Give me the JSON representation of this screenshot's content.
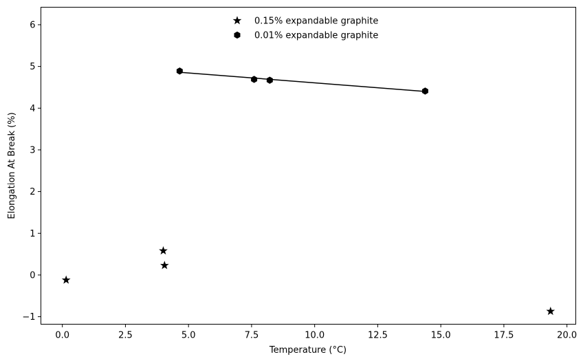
{
  "chart_data": {
    "type": "scatter",
    "xlabel": "Temperature (°C)",
    "ylabel": "Elongation At Break (%)",
    "xlim": [
      -0.85,
      20.35
    ],
    "ylim": [
      -1.18,
      6.42
    ],
    "xticks": [
      0.0,
      2.5,
      5.0,
      7.5,
      10.0,
      12.5,
      15.0,
      17.5,
      20.0
    ],
    "xtick_labels": [
      "0.0",
      "2.5",
      "5.0",
      "7.5",
      "10.0",
      "12.5",
      "15.0",
      "17.5",
      "20.0"
    ],
    "yticks": [
      -1,
      0,
      1,
      2,
      3,
      4,
      5,
      6
    ],
    "ytick_labels": [
      "−1",
      "0",
      "1",
      "2",
      "3",
      "4",
      "5",
      "6"
    ],
    "grid": false,
    "legend_position": "top-center",
    "series": [
      {
        "name": "0.15% expandable graphite",
        "marker": "star",
        "color": "#000000",
        "points": [
          {
            "x": 0.15,
            "y": -0.12
          },
          {
            "x": 4.0,
            "y": 0.58
          },
          {
            "x": 4.05,
            "y": 0.23
          },
          {
            "x": 19.35,
            "y": -0.87
          }
        ]
      },
      {
        "name": "0.01% expandable graphite",
        "marker": "hexagon",
        "color": "#000000",
        "points": [
          {
            "x": 4.65,
            "y": 4.89
          },
          {
            "x": 7.6,
            "y": 4.69
          },
          {
            "x": 8.22,
            "y": 4.67
          },
          {
            "x": 14.38,
            "y": 4.41
          }
        ]
      }
    ],
    "trendline": {
      "series": "0.01% expandable graphite",
      "x": [
        4.65,
        14.38
      ],
      "y": [
        4.86,
        4.4
      ]
    }
  }
}
